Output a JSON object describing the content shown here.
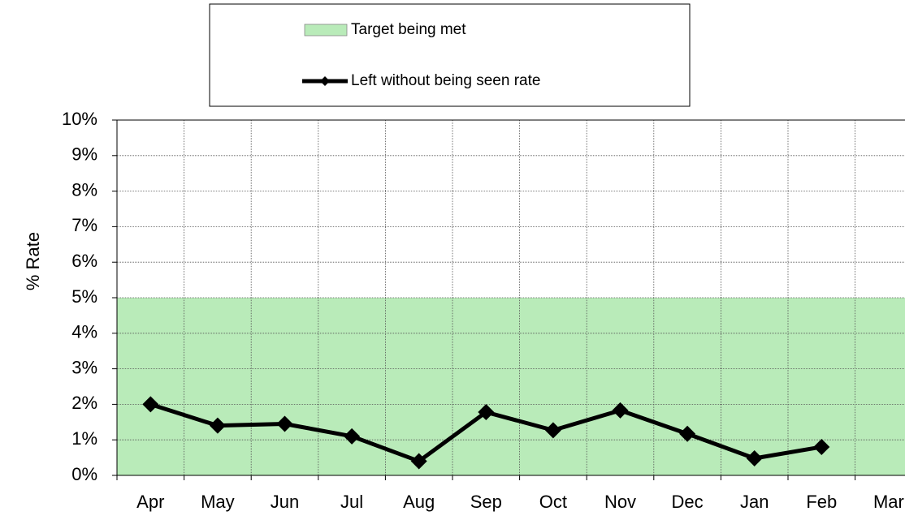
{
  "chart_data": {
    "type": "line",
    "y_label": "% Rate",
    "categories": [
      "Apr",
      "May",
      "Jun",
      "Jul",
      "Aug",
      "Sep",
      "Oct",
      "Nov",
      "Dec",
      "Jan",
      "Feb",
      "Mar"
    ],
    "target": {
      "name": "Target being met",
      "color": "#b9ebb9",
      "range": [
        0,
        5
      ]
    },
    "series": [
      {
        "name": "Left without being seen rate",
        "color": "#000000",
        "values": [
          2.0,
          1.4,
          1.45,
          1.1,
          0.4,
          1.78,
          1.27,
          1.83,
          1.17,
          0.48,
          0.8,
          null
        ]
      }
    ],
    "ylim": [
      0,
      10
    ],
    "yticks": [
      {
        "value": 0,
        "label": "0%"
      },
      {
        "value": 1,
        "label": "1%"
      },
      {
        "value": 2,
        "label": "2%"
      },
      {
        "value": 3,
        "label": "3%"
      },
      {
        "value": 4,
        "label": "4%"
      },
      {
        "value": 5,
        "label": "5%"
      },
      {
        "value": 6,
        "label": "6%"
      },
      {
        "value": 7,
        "label": "7%"
      },
      {
        "value": 8,
        "label": "8%"
      },
      {
        "value": 9,
        "label": "9%"
      },
      {
        "value": 10,
        "label": "10%"
      }
    ],
    "grid": true
  }
}
